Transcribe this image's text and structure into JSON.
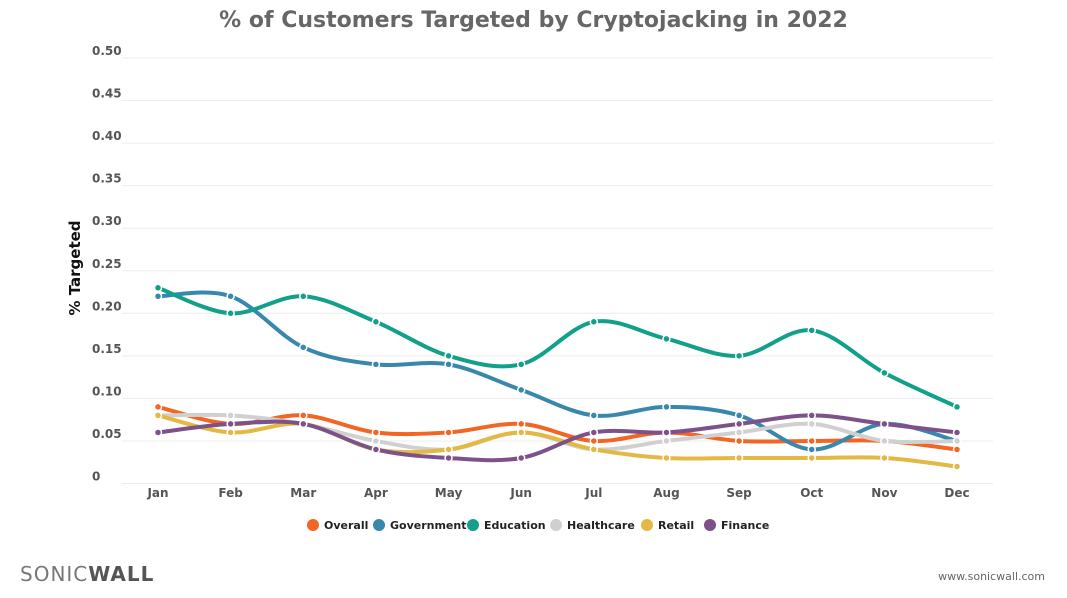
{
  "footer": {
    "logo_light": "SONIC",
    "logo_bold": "WALL",
    "url": "www.sonicwall.com"
  },
  "chart_data": {
    "type": "line",
    "title": "% of Customers Targeted by Cryptojacking in 2022",
    "xlabel": "",
    "ylabel": "% Targeted",
    "ylim": [
      0,
      0.5
    ],
    "yticks": [
      "0",
      "0.05",
      "0.10",
      "0.15",
      "0.20",
      "0.25",
      "0.30",
      "0.35",
      "0.40",
      "0.45",
      "0.50"
    ],
    "grid": true,
    "legend": "bottom",
    "categories": [
      "Jan",
      "Feb",
      "Mar",
      "Apr",
      "May",
      "Jun",
      "Jul",
      "Aug",
      "Sep",
      "Oct",
      "Nov",
      "Dec"
    ],
    "series": [
      {
        "name": "Overall",
        "color": "#f26522",
        "values": [
          0.09,
          0.07,
          0.08,
          0.06,
          0.06,
          0.07,
          0.05,
          0.06,
          0.05,
          0.05,
          0.05,
          0.04
        ]
      },
      {
        "name": "Government",
        "color": "#3a87ad",
        "values": [
          0.22,
          0.22,
          0.16,
          0.14,
          0.14,
          0.11,
          0.08,
          0.09,
          0.08,
          0.04,
          0.07,
          0.05
        ]
      },
      {
        "name": "Education",
        "color": "#12a08a",
        "values": [
          0.23,
          0.2,
          0.22,
          0.19,
          0.15,
          0.14,
          0.19,
          0.17,
          0.15,
          0.18,
          0.13,
          0.09
        ]
      },
      {
        "name": "Healthcare",
        "color": "#d0d0d0",
        "values": [
          0.08,
          0.08,
          0.07,
          0.05,
          0.04,
          0.06,
          0.04,
          0.05,
          0.06,
          0.07,
          0.05,
          0.05
        ]
      },
      {
        "name": "Retail",
        "color": "#e3b843",
        "values": [
          0.08,
          0.06,
          0.07,
          0.04,
          0.04,
          0.06,
          0.04,
          0.03,
          0.03,
          0.03,
          0.03,
          0.02
        ]
      },
      {
        "name": "Finance",
        "color": "#7d5189",
        "values": [
          0.06,
          0.07,
          0.07,
          0.04,
          0.03,
          0.03,
          0.06,
          0.06,
          0.07,
          0.08,
          0.07,
          0.06
        ]
      }
    ]
  }
}
